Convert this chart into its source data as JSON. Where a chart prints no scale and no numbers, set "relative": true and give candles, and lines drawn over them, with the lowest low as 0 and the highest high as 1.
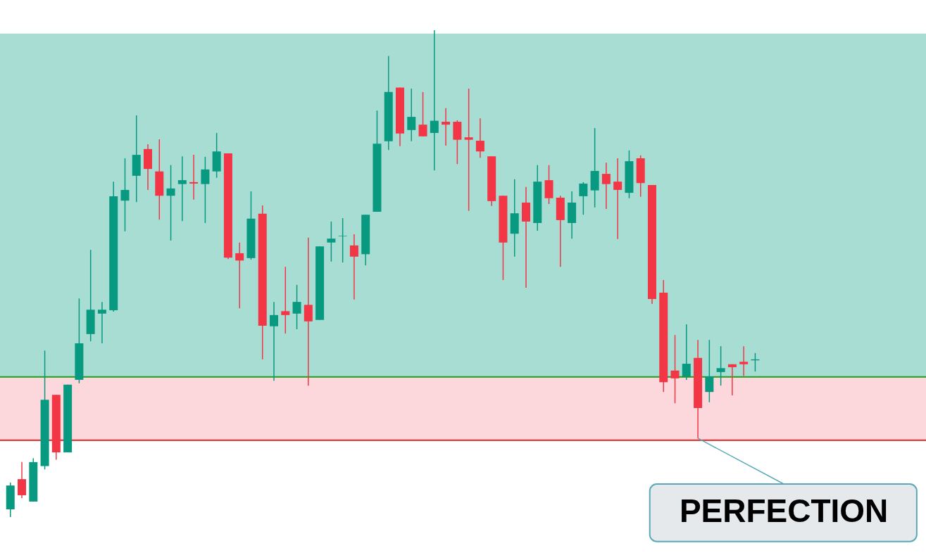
{
  "chart_data": {
    "type": "candlestick",
    "relative": true,
    "categories": [
      null,
      null,
      null,
      null,
      null,
      null,
      null,
      null,
      null,
      null,
      null,
      null,
      null,
      null,
      null,
      null,
      null,
      null,
      null,
      null,
      null,
      null,
      null,
      null,
      null,
      null,
      null,
      null,
      null,
      null,
      null,
      null,
      null,
      null,
      null,
      null,
      null,
      null,
      null,
      null,
      null,
      null,
      null,
      null,
      null,
      null,
      null,
      null,
      null,
      null,
      null,
      null,
      null,
      null,
      null,
      null,
      null,
      null,
      null,
      null,
      null,
      null,
      null,
      null,
      null,
      null
    ],
    "ohlc": [
      [
        0.016,
        0.071,
        0,
        0.065
      ],
      [
        0.078,
        0.113,
        0.039,
        0.045
      ],
      [
        0.032,
        0.121,
        0.032,
        0.113
      ],
      [
        0.105,
        0.342,
        0.098,
        0.241
      ],
      [
        0.251,
        0.251,
        0.118,
        0.133
      ],
      [
        0.133,
        0.272,
        0.133,
        0.272
      ],
      [
        0.282,
        0.449,
        0.275,
        0.357
      ],
      [
        0.376,
        0.549,
        0.361,
        0.426
      ],
      [
        0.418,
        0.442,
        0.357,
        0.426
      ],
      [
        0.425,
        0.689,
        0.422,
        0.659
      ],
      [
        0.65,
        0.737,
        0.587,
        0.672
      ],
      [
        0.701,
        0.825,
        0.647,
        0.744
      ],
      [
        0.756,
        0.766,
        0.672,
        0.715
      ],
      [
        0.71,
        0.776,
        0.611,
        0.66
      ],
      [
        0.66,
        0.723,
        0.568,
        0.675
      ],
      [
        0.684,
        0.741,
        0.608,
        0.692
      ],
      [
        0.688,
        0.744,
        0.652,
        0.685
      ],
      [
        0.684,
        0.74,
        0.604,
        0.714
      ],
      [
        0.71,
        0.789,
        0.697,
        0.751
      ],
      [
        0.747,
        0.747,
        0.53,
        0.533
      ],
      [
        0.542,
        0.564,
        0.429,
        0.527
      ],
      [
        0.532,
        0.669,
        0.529,
        0.613
      ],
      [
        0.623,
        0.64,
        0.324,
        0.393
      ],
      [
        0.392,
        0.442,
        0.28,
        0.415
      ],
      [
        0.423,
        0.514,
        0.377,
        0.415
      ],
      [
        0.418,
        0.477,
        0.386,
        0.442
      ],
      [
        0.436,
        0.574,
        0.27,
        0.402
      ],
      [
        0.405,
        0.556,
        0.405,
        0.556
      ],
      [
        0.564,
        0.607,
        0.525,
        0.572
      ],
      [
        0.577,
        0.614,
        0.523,
        0.578
      ],
      [
        0.558,
        0.581,
        0.447,
        0.535
      ],
      [
        0.54,
        0.621,
        0.517,
        0.621
      ],
      [
        0.627,
        0.835,
        0.627,
        0.767
      ],
      [
        0.772,
        0.947,
        0.754,
        0.873
      ],
      [
        0.882,
        0.882,
        0.762,
        0.788
      ],
      [
        0.795,
        0.88,
        0.772,
        0.822
      ],
      [
        0.806,
        0.873,
        0.782,
        0.782
      ],
      [
        0.789,
        1,
        0.712,
        0.814
      ],
      [
        0.812,
        0.84,
        0.763,
        0.806
      ],
      [
        0.812,
        0.815,
        0.725,
        0.775
      ],
      [
        0.78,
        0.88,
        0.629,
        0.775
      ],
      [
        0.773,
        0.819,
        0.738,
        0.751
      ],
      [
        0.741,
        0.741,
        0.639,
        0.649
      ],
      [
        0.66,
        0.66,
        0.487,
        0.564
      ],
      [
        0.582,
        0.694,
        0.535,
        0.624
      ],
      [
        0.646,
        0.678,
        0.471,
        0.607
      ],
      [
        0.604,
        0.723,
        0.588,
        0.689
      ],
      [
        0.692,
        0.723,
        0.643,
        0.655
      ],
      [
        0.656,
        0.66,
        0.514,
        0.61
      ],
      [
        0.604,
        0.669,
        0.572,
        0.646
      ],
      [
        0.659,
        0.688,
        0.621,
        0.685
      ],
      [
        0.671,
        0.799,
        0.636,
        0.711
      ],
      [
        0.705,
        0.728,
        0.633,
        0.684
      ],
      [
        0.689,
        0.737,
        0.571,
        0.672
      ],
      [
        0.666,
        0.753,
        0.655,
        0.731
      ],
      [
        0.737,
        0.743,
        0.658,
        0.686
      ],
      [
        0.682,
        0.682,
        0.438,
        0.448
      ],
      [
        0.461,
        0.487,
        0.257,
        0.277
      ],
      [
        0.301,
        0.374,
        0.234,
        0.285
      ],
      [
        0.289,
        0.396,
        0.282,
        0.315
      ],
      [
        0.327,
        0.364,
        0.162,
        0.224
      ],
      [
        0.257,
        0.364,
        0.236,
        0.289
      ],
      [
        0.298,
        0.351,
        0.27,
        0.306
      ],
      [
        0.314,
        0.314,
        0.25,
        0.308
      ],
      [
        0.319,
        0.351,
        0.29,
        0.314
      ],
      [
        0.322,
        0.337,
        0.299,
        0.324
      ]
    ],
    "colors": [
      "#089981",
      "#f23645",
      "#089981",
      "#089981",
      "#f23645",
      "#089981",
      "#089981",
      "#089981",
      "#089981",
      "#089981",
      "#089981",
      "#089981",
      "#f23645",
      "#f23645",
      "#089981",
      "#089981",
      "#f23645",
      "#089981",
      "#089981",
      "#f23645",
      "#f23645",
      "#089981",
      "#f23645",
      "#089981",
      "#f23645",
      "#089981",
      "#f23645",
      "#089981",
      "#089981",
      "#089981",
      "#f23645",
      "#089981",
      "#089981",
      "#089981",
      "#f23645",
      "#089981",
      "#f23645",
      "#089981",
      "#f23645",
      "#f23645",
      "#f23645",
      "#f23645",
      "#f23645",
      "#f23645",
      "#089981",
      "#f23645",
      "#089981",
      "#f23645",
      "#f23645",
      "#089981",
      "#089981",
      "#089981",
      "#f23645",
      "#f23645",
      "#089981",
      "#f23645",
      "#f23645",
      "#f23645",
      "#f23645",
      "#089981",
      "#f23645",
      "#089981",
      "#089981",
      "#f23645",
      "#f23645",
      "#089981"
    ],
    "bands": [
      {
        "axis": "y",
        "from": 0.288,
        "to": 0.993,
        "color": "#a8ddd4"
      },
      {
        "axis": "y",
        "from": 0.158,
        "to": 0.288,
        "color": "#fcd8dc"
      }
    ],
    "ref_lines": [
      {
        "axis": "y",
        "value": 0.288,
        "color": "#1e9e1a"
      },
      {
        "axis": "y",
        "value": 0.158,
        "color": "#d42a2a"
      }
    ],
    "annotations": [
      {
        "text": "PERFECTION",
        "y": 0.162
      }
    ]
  }
}
